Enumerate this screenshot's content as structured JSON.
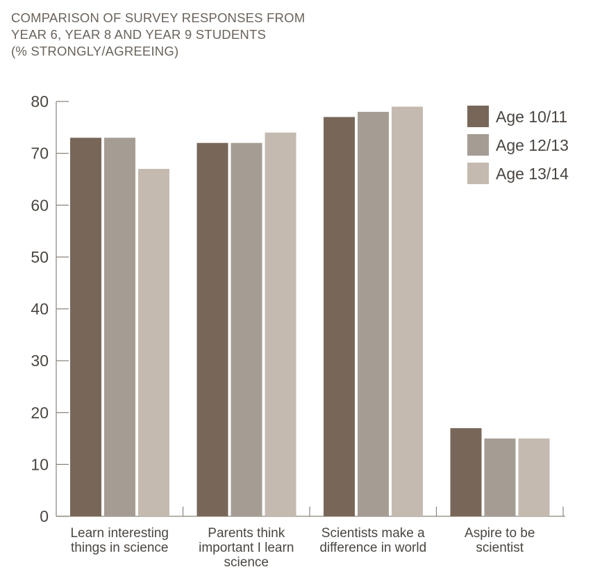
{
  "title_lines": [
    "COMPARISON OF SURVEY RESPONSES FROM",
    "YEAR 6, YEAR 8 AND YEAR 9 STUDENTS",
    "(% STRONGLY/AGREEING)"
  ],
  "chart_data": {
    "type": "bar",
    "title": "COMPARISON OF SURVEY RESPONSES FROM YEAR 6, YEAR 8 AND YEAR 9 STUDENTS (% STRONGLY/AGREEING)",
    "categories": [
      [
        "Learn interesting",
        "things in science"
      ],
      [
        "Parents think",
        "important I learn",
        "science"
      ],
      [
        "Scientists make a",
        "difference in world"
      ],
      [
        "Aspire to be",
        "scientist"
      ]
    ],
    "series": [
      {
        "name": "Age 10/11",
        "color": "#786759",
        "values": [
          73,
          72,
          77,
          17
        ]
      },
      {
        "name": "Age 12/13",
        "color": "#a59d94",
        "values": [
          73,
          72,
          78,
          15
        ]
      },
      {
        "name": "Age 13/14",
        "color": "#c4bab0",
        "values": [
          67,
          74,
          79,
          15
        ]
      }
    ],
    "yticks": [
      0,
      10,
      20,
      30,
      40,
      50,
      60,
      70,
      80
    ],
    "ylim": [
      0,
      80
    ],
    "xlabel": "",
    "ylabel": "",
    "grid": false,
    "legend_position": "top-right"
  }
}
